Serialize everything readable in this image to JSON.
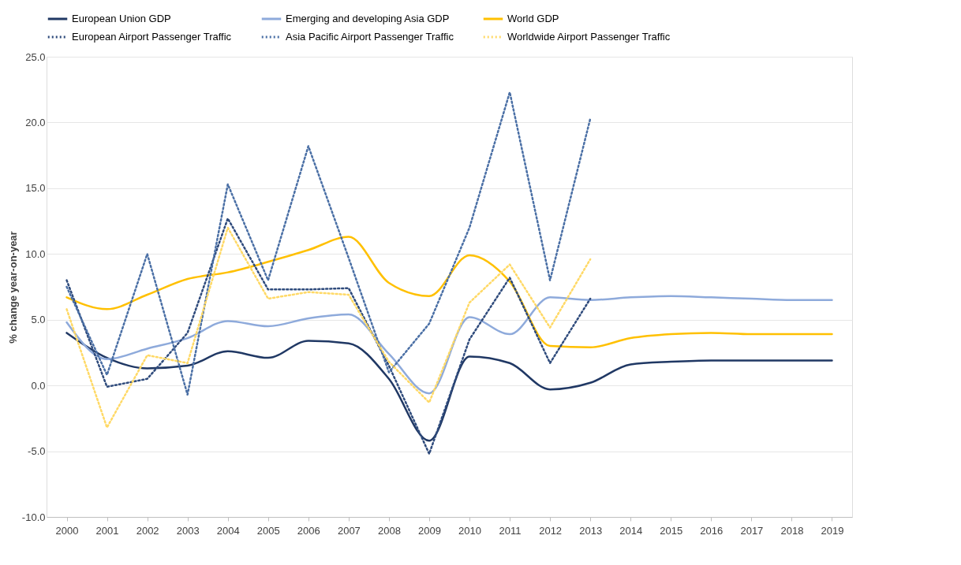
{
  "chart_data": {
    "type": "line",
    "ylabel": "% change year-on-year",
    "categories": [
      "2000",
      "2001",
      "2002",
      "2003",
      "2004",
      "2005",
      "2006",
      "2007",
      "2008",
      "2009",
      "2010",
      "2011",
      "2012",
      "2013",
      "2014",
      "2015",
      "2016",
      "2017",
      "2018",
      "2019"
    ],
    "series": [
      {
        "name": "European Union GDP",
        "color": "#203864",
        "line_style": "solid",
        "values": [
          4.0,
          2.1,
          1.3,
          1.5,
          2.6,
          2.1,
          3.4,
          3.2,
          0.5,
          -4.2,
          2.2,
          1.7,
          -0.3,
          0.2,
          1.6,
          1.8,
          1.9,
          1.9,
          1.9,
          1.9
        ]
      },
      {
        "name": "Emerging and developing Asia GDP",
        "color": "#8eaadb",
        "line_style": "solid",
        "values": [
          4.8,
          2.0,
          2.8,
          3.6,
          4.9,
          4.5,
          5.1,
          5.4,
          2.4,
          -0.6,
          5.2,
          3.9,
          6.7,
          6.5,
          6.7,
          6.8,
          6.7,
          6.6,
          6.5,
          6.5
        ]
      },
      {
        "name": "World GDP",
        "color": "#ffc000",
        "line_style": "solid",
        "values": [
          6.7,
          5.8,
          6.9,
          8.1,
          8.6,
          9.4,
          10.3,
          11.3,
          7.8,
          6.8,
          9.9,
          7.9,
          3.0,
          2.9,
          3.6,
          3.9,
          4.0,
          3.9,
          3.9,
          3.9
        ]
      },
      {
        "name": "European Airport Passenger Traffic",
        "color": "#2f4b7c",
        "line_style": "dotted",
        "values": [
          8.0,
          -0.1,
          0.5,
          4.0,
          12.7,
          7.3,
          7.3,
          7.4,
          1.5,
          -5.2,
          3.5,
          8.2,
          1.7,
          6.6,
          null,
          null,
          null,
          null,
          null,
          null
        ]
      },
      {
        "name": "Asia Pacific Airport Passenger Traffic",
        "color": "#4a6fa5",
        "line_style": "dotted",
        "values": [
          7.5,
          0.8,
          10.0,
          -0.7,
          15.3,
          8.0,
          18.2,
          9.7,
          1.0,
          4.7,
          12.0,
          22.3,
          8.0,
          20.3,
          null,
          null,
          null,
          null,
          null,
          null
        ]
      },
      {
        "name": "Worldwide Airport Passenger Traffic",
        "color": "#ffd966",
        "line_style": "dotted",
        "values": [
          5.8,
          -3.2,
          2.3,
          1.7,
          12.0,
          6.6,
          7.1,
          6.9,
          1.8,
          -1.3,
          6.3,
          9.2,
          4.4,
          9.6,
          null,
          null,
          null,
          null,
          null,
          null
        ]
      }
    ],
    "ylim": [
      -10,
      25
    ],
    "yticks": [
      {
        "value": -10,
        "label": "-10.0"
      },
      {
        "value": -5,
        "label": "-5.0"
      },
      {
        "value": 0,
        "label": "0.0"
      },
      {
        "value": 5,
        "label": "5.0"
      },
      {
        "value": 10,
        "label": "10.0"
      },
      {
        "value": 15,
        "label": "15.0"
      },
      {
        "value": 20,
        "label": "20.0"
      },
      {
        "value": 25,
        "label": "25.0"
      }
    ],
    "grid": "y",
    "legend": "top"
  }
}
